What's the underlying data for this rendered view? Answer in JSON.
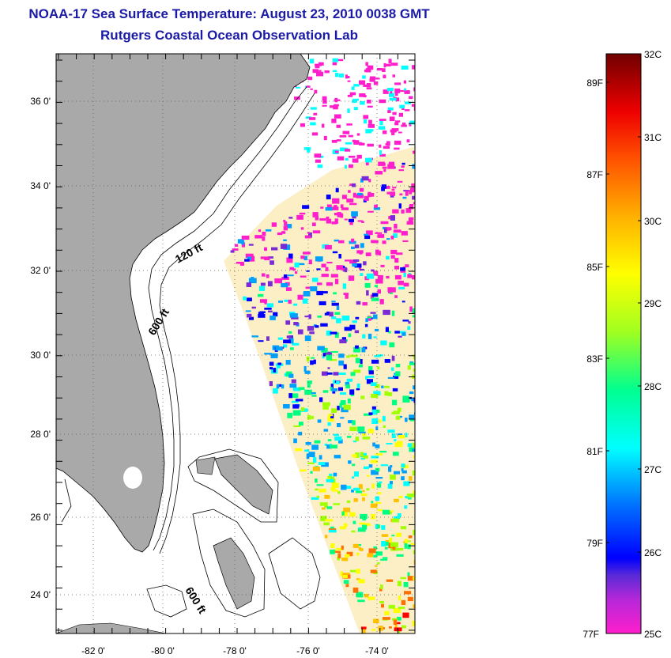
{
  "header": {
    "title": "NOAA-17 Sea Surface Temperature:  August 23, 2010 0038 GMT",
    "subtitle": "Rutgers Coastal Ocean Observation Lab"
  },
  "map": {
    "lat_ticks": [
      "36 0'",
      "34 0'",
      "32 0'",
      "30 0'",
      "28 0'",
      "26 0'",
      "24 0'"
    ],
    "lon_ticks": [
      "-82 0'",
      "-80 0'",
      "-78 0'",
      "-76 0'",
      "-74 0'"
    ],
    "contour_labels": [
      "120 ft",
      "600 ft",
      "600 ft"
    ],
    "colors": {
      "land": "#a9a9a9",
      "water": "#ffffff",
      "frame": "#000000"
    }
  },
  "colorbar": {
    "celsius_ticks": [
      "32C",
      "31C",
      "30C",
      "29C",
      "28C",
      "27C",
      "26C",
      "25C"
    ],
    "fahrenheit_ticks": [
      "89F",
      "87F",
      "85F",
      "83F",
      "81F",
      "79F",
      "77F"
    ],
    "colormap": [
      "#ff1ecc",
      "#7a2bd6",
      "#0000ff",
      "#00a0ff",
      "#00ffff",
      "#00ff80",
      "#a0ff00",
      "#ffff00",
      "#ffc000",
      "#ff7000",
      "#ff0000",
      "#b00000",
      "#700000"
    ]
  }
}
